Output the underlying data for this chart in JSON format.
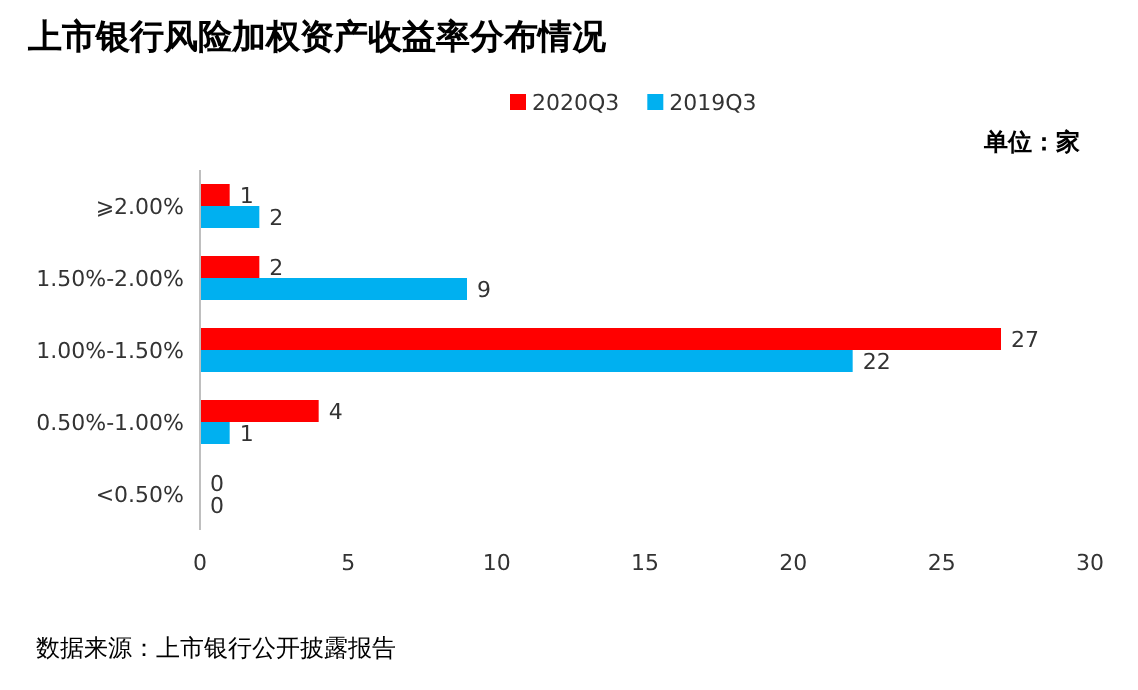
{
  "chart_data": {
    "type": "bar",
    "orientation": "horizontal",
    "title": "上市银行风险加权资产收益率分布情况",
    "categories": [
      "⩾2.00%",
      "1.50%-2.00%",
      "1.00%-1.50%",
      "0.50%-1.00%",
      "<0.50%"
    ],
    "series": [
      {
        "name": "2020Q3",
        "color": "#ff0000",
        "values": [
          1,
          2,
          27,
          4,
          0
        ]
      },
      {
        "name": "2019Q3",
        "color": "#00b0f0",
        "values": [
          2,
          9,
          22,
          1,
          0
        ]
      }
    ],
    "xlim": [
      0,
      30
    ],
    "xticks": [
      0,
      5,
      10,
      15,
      20,
      25,
      30
    ],
    "grid": false,
    "legend": "top",
    "data_labels": true,
    "annotations": [
      "单位：家",
      "数据来源：上市银行公开披露报告"
    ]
  }
}
